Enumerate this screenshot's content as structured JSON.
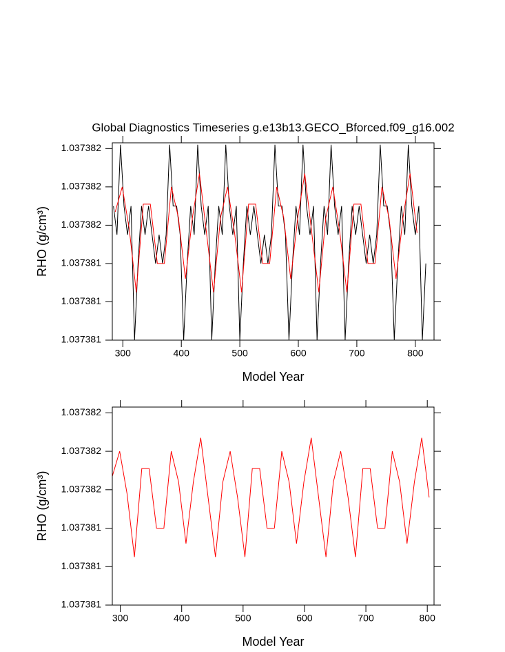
{
  "chart_data": [
    {
      "type": "line",
      "title": "Global Diagnostics Timeseries g.e13b13.GECO_Bforced.f09_g16.002",
      "xlabel": "Model Year",
      "ylabel": "RHO (g/cm³)",
      "xlim": [
        282,
        832
      ],
      "xticks": [
        300,
        400,
        500,
        600,
        700,
        800
      ],
      "ylim": [
        1.037381,
        1.03738203
      ],
      "yticks": [
        1.037381,
        {
          "value": 1.0373812,
          "label": "1.037381"
        },
        {
          "value": 1.0373814,
          "label": "1.037381"
        },
        {
          "value": 1.0373816,
          "label": "1.037382"
        },
        {
          "value": 1.0373818,
          "label": "1.037382"
        },
        1.037382
      ],
      "series": [
        {
          "color": "#000000",
          "x": [
            284,
            290,
            296,
            302,
            308,
            314,
            320,
            326,
            332,
            338,
            344,
            350,
            356,
            362,
            368,
            374,
            380,
            386,
            392,
            398,
            404,
            410,
            416,
            422,
            428,
            434,
            440,
            446,
            452,
            458,
            464,
            470,
            476,
            482,
            488,
            494,
            500,
            506,
            512,
            518,
            524,
            530,
            536,
            542,
            548,
            554,
            560,
            566,
            572,
            578,
            584,
            590,
            596,
            602,
            608,
            614,
            620,
            626,
            632,
            638,
            644,
            650,
            656,
            662,
            668,
            674,
            680,
            686,
            692,
            698,
            704,
            710,
            716,
            722,
            728,
            734,
            740,
            746,
            752,
            758,
            764,
            770,
            776,
            782,
            788,
            794,
            800,
            806,
            812,
            818
          ],
          "values": [
            1.0373817,
            1.03738155,
            1.03738202,
            1.0373817,
            1.03738155,
            1.0373817,
            1.037381,
            1.0373814,
            1.0373817,
            1.03738155,
            1.0373817,
            1.03738155,
            1.0373814,
            1.03738155,
            1.0373814,
            1.03738155,
            1.03738202,
            1.0373817,
            1.0373817,
            1.03738155,
            1.037381,
            1.0373814,
            1.0373817,
            1.03738155,
            1.03738202,
            1.0373817,
            1.03738155,
            1.0373817,
            1.037381,
            1.0373814,
            1.0373817,
            1.03738155,
            1.03738202,
            1.0373817,
            1.03738155,
            1.0373817,
            1.037381,
            1.0373814,
            1.0373817,
            1.03738155,
            1.0373817,
            1.03738155,
            1.0373814,
            1.03738155,
            1.0373814,
            1.03738155,
            1.03738202,
            1.0373817,
            1.0373817,
            1.03738155,
            1.037381,
            1.0373814,
            1.0373817,
            1.03738155,
            1.03738202,
            1.0373817,
            1.03738155,
            1.0373817,
            1.037381,
            1.0373814,
            1.0373817,
            1.03738155,
            1.03738202,
            1.0373817,
            1.03738155,
            1.0373817,
            1.037381,
            1.0373814,
            1.0373817,
            1.03738155,
            1.0373817,
            1.03738155,
            1.0373814,
            1.03738155,
            1.0373814,
            1.03738155,
            1.03738202,
            1.0373817,
            1.0373817,
            1.03738155,
            1.037381,
            1.0373814,
            1.0373817,
            1.03738155,
            1.03738202,
            1.0373817,
            1.03738155,
            1.0373817,
            1.037381,
            1.0373814
          ]
        },
        {
          "color": "#ff0000",
          "x": [
            287,
            299,
            311,
            323,
            335,
            347,
            359,
            371,
            383,
            395,
            407,
            419,
            431,
            443,
            455,
            467,
            479,
            491,
            503,
            515,
            527,
            539,
            551,
            563,
            575,
            587,
            599,
            611,
            623,
            635,
            647,
            659,
            671,
            683,
            695,
            707,
            719,
            731,
            743,
            755,
            767,
            779,
            791,
            803
          ],
          "values": [
            1.03738167,
            1.0373818,
            1.03738158,
            1.03738125,
            1.03738171,
            1.03738171,
            1.0373814,
            1.0373814,
            1.0373818,
            1.03738164,
            1.03738132,
            1.03738164,
            1.03738187,
            1.03738156,
            1.03738125,
            1.03738164,
            1.0373818,
            1.03738156,
            1.03738125,
            1.03738171,
            1.03738171,
            1.0373814,
            1.0373814,
            1.0373818,
            1.03738164,
            1.03738132,
            1.03738164,
            1.03738187,
            1.03738156,
            1.03738125,
            1.03738164,
            1.0373818,
            1.03738156,
            1.03738125,
            1.03738171,
            1.03738171,
            1.0373814,
            1.0373814,
            1.0373818,
            1.03738164,
            1.03738132,
            1.03738164,
            1.03738187,
            1.03738156
          ]
        }
      ]
    },
    {
      "type": "line",
      "xlabel": "Model Year",
      "ylabel": "RHO (g/cm³)",
      "xlim": [
        287,
        811
      ],
      "xticks": [
        300,
        400,
        500,
        600,
        700,
        800
      ],
      "ylim": [
        1.037381,
        1.03738203
      ],
      "yticks": [
        1.037381,
        {
          "value": 1.0373812,
          "label": "1.037381"
        },
        {
          "value": 1.0373814,
          "label": "1.037381"
        },
        {
          "value": 1.0373816,
          "label": "1.037382"
        },
        {
          "value": 1.0373818,
          "label": "1.037382"
        },
        1.037382
      ],
      "series": [
        {
          "color": "#ff0000",
          "x": [
            287,
            299,
            311,
            323,
            335,
            347,
            359,
            371,
            383,
            395,
            407,
            419,
            431,
            443,
            455,
            467,
            479,
            491,
            503,
            515,
            527,
            539,
            551,
            563,
            575,
            587,
            599,
            611,
            623,
            635,
            647,
            659,
            671,
            683,
            695,
            707,
            719,
            731,
            743,
            755,
            767,
            779,
            791,
            803
          ],
          "values": [
            1.03738167,
            1.0373818,
            1.03738158,
            1.03738125,
            1.03738171,
            1.03738171,
            1.0373814,
            1.0373814,
            1.0373818,
            1.03738164,
            1.03738132,
            1.03738164,
            1.03738187,
            1.03738156,
            1.03738125,
            1.03738164,
            1.0373818,
            1.03738156,
            1.03738125,
            1.03738171,
            1.03738171,
            1.0373814,
            1.0373814,
            1.0373818,
            1.03738164,
            1.03738132,
            1.03738164,
            1.03738187,
            1.03738156,
            1.03738125,
            1.03738164,
            1.0373818,
            1.03738156,
            1.03738125,
            1.03738171,
            1.03738171,
            1.0373814,
            1.0373814,
            1.0373818,
            1.03738164,
            1.03738132,
            1.03738164,
            1.03738187,
            1.03738156
          ]
        }
      ]
    }
  ]
}
